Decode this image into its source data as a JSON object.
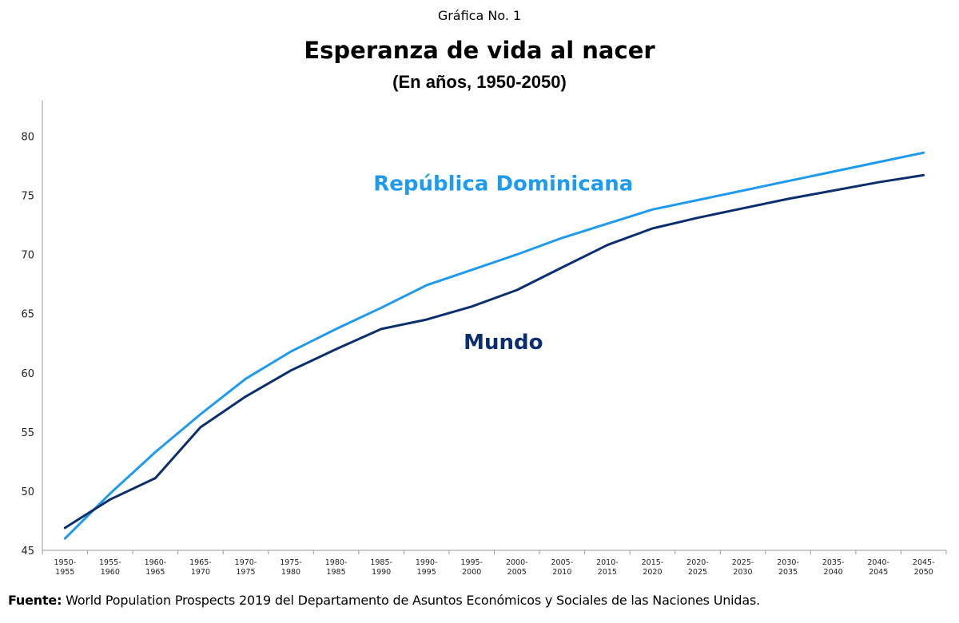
{
  "kicker": "Gráfica No. 1",
  "source": {
    "label": "Fuente:",
    "text": " World Population Prospects 2019 del Departamento de Asuntos Económicos y Sociales de las Naciones Unidas."
  },
  "colors": {
    "rd": "#1E9BEF",
    "mundo": "#0B2F6E",
    "axis": "#999999"
  },
  "chart_data": {
    "type": "line",
    "title": "Esperanza de vida al nacer",
    "subtitle": "(En años, 1950-2050)",
    "xlabel": "",
    "ylabel": "",
    "ylim": [
      45,
      83
    ],
    "yticks": [
      45,
      50,
      55,
      60,
      65,
      70,
      75,
      80
    ],
    "grid": false,
    "legend": "inline labels",
    "categories": [
      [
        "1950-",
        "1955"
      ],
      [
        "1955-",
        "1960"
      ],
      [
        "1960-",
        "1965"
      ],
      [
        "1965-",
        "1970"
      ],
      [
        "1970-",
        "1975"
      ],
      [
        "1975-",
        "1980"
      ],
      [
        "1980-",
        "1985"
      ],
      [
        "1985-",
        "1990"
      ],
      [
        "1990-",
        "1995"
      ],
      [
        "1995-",
        "2000"
      ],
      [
        "2000-",
        "2005"
      ],
      [
        "2005-",
        "2010"
      ],
      [
        "2010-",
        "2015"
      ],
      [
        "2015-",
        "2020"
      ],
      [
        "2020-",
        "2025"
      ],
      [
        "2025-",
        "2030"
      ],
      [
        "2030-",
        "2035"
      ],
      [
        "2035-",
        "2040"
      ],
      [
        "2040-",
        "2045"
      ],
      [
        "2045-",
        "2050"
      ]
    ],
    "series": [
      {
        "name": "República Dominicana",
        "key": "rd",
        "label_at": {
          "category_index": 9.7,
          "value": 75.4
        },
        "values": [
          46.0,
          49.8,
          53.3,
          56.5,
          59.5,
          61.8,
          63.7,
          65.5,
          67.4,
          68.7,
          70.0,
          71.4,
          72.6,
          73.8,
          74.6,
          75.4,
          76.2,
          77.0,
          77.8,
          78.6
        ]
      },
      {
        "name": "Mundo",
        "key": "mundo",
        "label_at": {
          "category_index": 9.7,
          "value": 62.0
        },
        "values": [
          46.9,
          49.3,
          51.1,
          55.4,
          58.0,
          60.2,
          62.0,
          63.7,
          64.5,
          65.6,
          67.0,
          68.9,
          70.8,
          72.2,
          73.1,
          73.9,
          74.7,
          75.4,
          76.1,
          76.7
        ]
      }
    ]
  }
}
